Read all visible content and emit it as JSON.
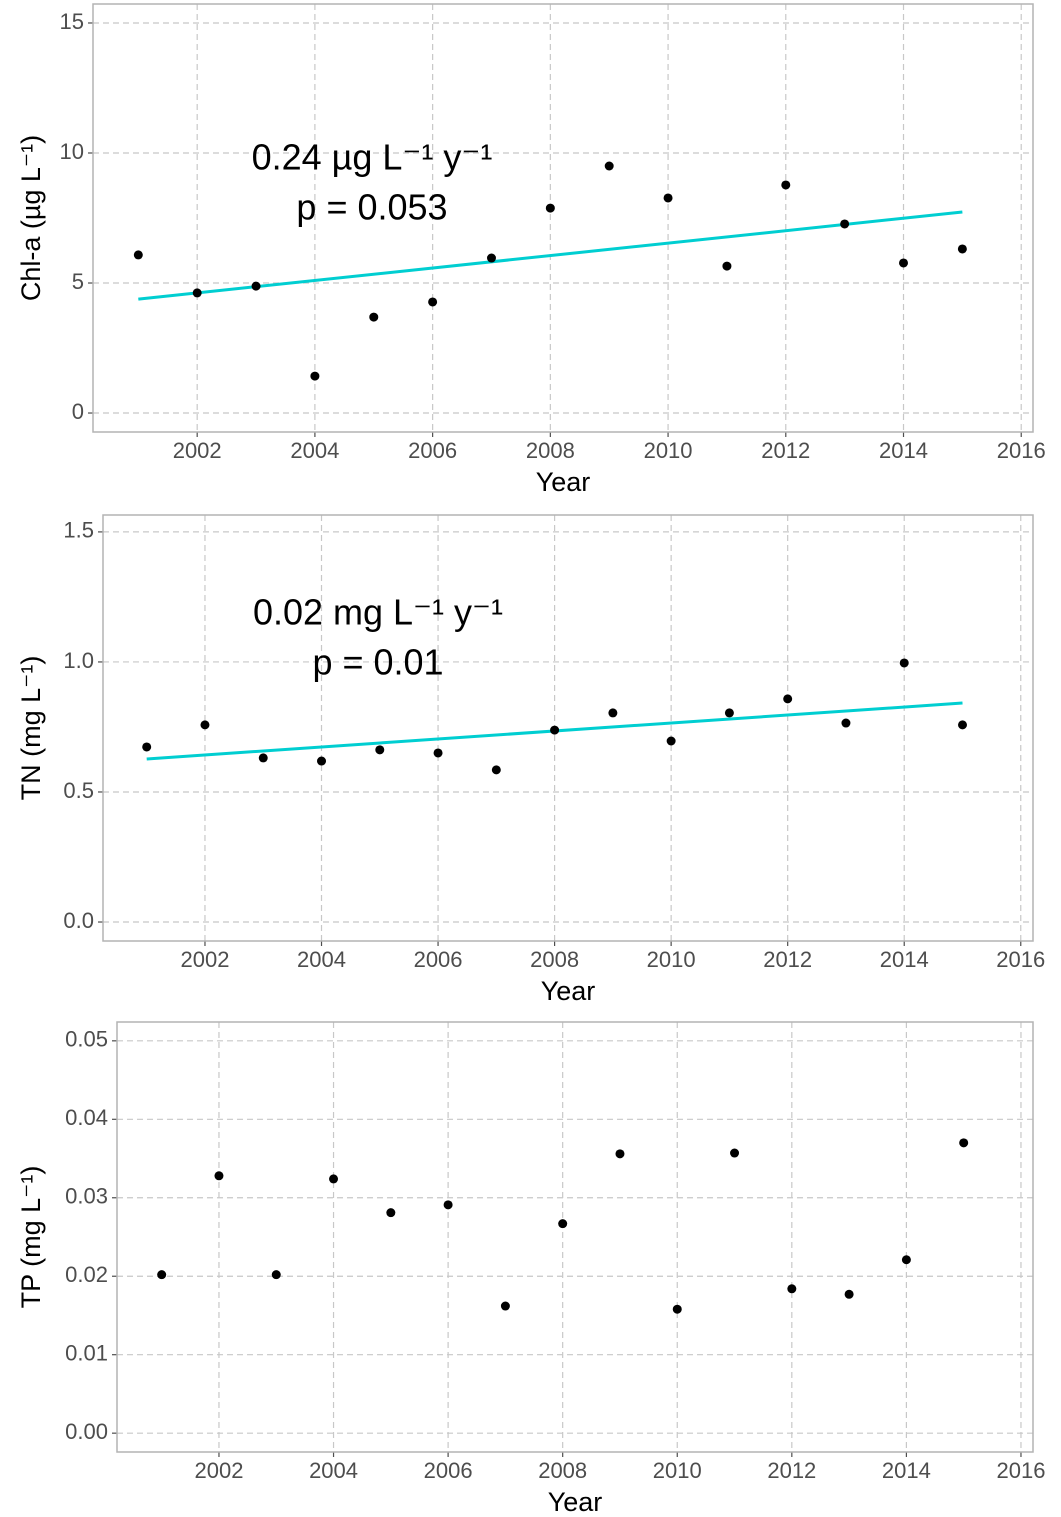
{
  "chart_data": [
    {
      "type": "scatter",
      "x_label": "Year",
      "y_label": "Chl-a (µg L⁻¹)",
      "annotations": [
        "0.24 µg L⁻¹ y⁻¹",
        "p = 0.053"
      ],
      "x": [
        2001,
        2002,
        2003,
        2004,
        2005,
        2006,
        2007,
        2008,
        2009,
        2010,
        2011,
        2012,
        2013,
        2014,
        2015
      ],
      "values": [
        6.08,
        4.62,
        4.88,
        1.42,
        3.69,
        4.27,
        5.96,
        7.88,
        9.5,
        8.27,
        5.65,
        8.77,
        7.27,
        5.77,
        6.31
      ],
      "color": "#000000",
      "trend": {
        "x": [
          2001,
          2015
        ],
        "values": [
          4.38,
          7.73
        ],
        "color": "#00CED1"
      },
      "xlim": [
        2000.23,
        2016.2
      ],
      "xticks": [
        2002,
        2004,
        2006,
        2008,
        2010,
        2012,
        2014,
        2016
      ],
      "ylim": [
        -0.73,
        15.73
      ],
      "yticks": [
        0,
        5,
        10,
        15
      ],
      "grid": true
    },
    {
      "type": "scatter",
      "x_label": "Year",
      "y_label": "TN (mg L⁻¹)",
      "annotations": [
        "0.02 mg L⁻¹ y⁻¹",
        "p = 0.01"
      ],
      "x": [
        2001,
        2002,
        2003,
        2004,
        2005,
        2006,
        2007,
        2008,
        2009,
        2010,
        2011,
        2012,
        2013,
        2014,
        2015
      ],
      "values": [
        0.673,
        0.758,
        0.631,
        0.619,
        0.662,
        0.65,
        0.585,
        0.738,
        0.804,
        0.696,
        0.804,
        0.858,
        0.765,
        0.996,
        0.758
      ],
      "color": "#000000",
      "trend": {
        "x": [
          2001,
          2015
        ],
        "values": [
          0.627,
          0.842
        ],
        "color": "#00CED1"
      },
      "xlim": [
        2000.25,
        2016.21
      ],
      "xticks": [
        2002,
        2004,
        2006,
        2008,
        2010,
        2012,
        2014,
        2016
      ],
      "ylim": [
        -0.073,
        1.565
      ],
      "yticks": [
        {
          "value": 0,
          "label": "0.0"
        },
        0.5,
        {
          "value": 1,
          "label": "1.0"
        },
        1.5
      ],
      "grid": true
    },
    {
      "type": "scatter",
      "x_label": "Year",
      "y_label": "TP (mg L⁻¹)",
      "x": [
        2001,
        2002,
        2003,
        2004,
        2005,
        2006,
        2007,
        2008,
        2009,
        2010,
        2011,
        2012,
        2013,
        2014,
        2015
      ],
      "values": [
        0.0202,
        0.0328,
        0.0202,
        0.0324,
        0.0281,
        0.0291,
        0.0162,
        0.0267,
        0.0356,
        0.0158,
        0.0357,
        0.0184,
        0.0177,
        0.0221,
        0.037
      ],
      "color": "#000000",
      "xlim": [
        2000.22,
        2016.21
      ],
      "xticks": [
        2002,
        2004,
        2006,
        2008,
        2010,
        2012,
        2014,
        2016
      ],
      "ylim": [
        -0.0024,
        0.0524
      ],
      "yticks": [
        {
          "value": 0,
          "label": "0.00"
        },
        0.01,
        0.02,
        0.03,
        0.04,
        0.05
      ],
      "grid": true
    }
  ]
}
